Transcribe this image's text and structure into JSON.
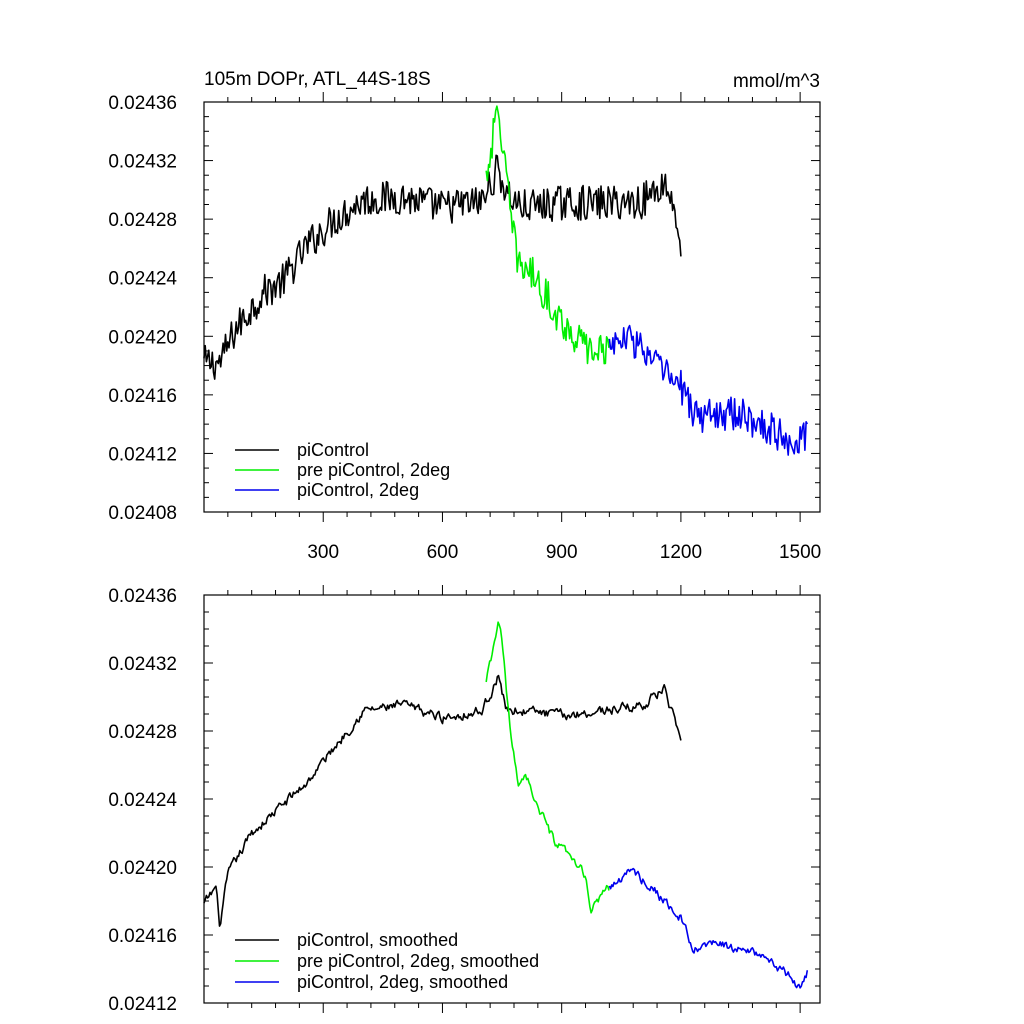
{
  "chart_data": [
    {
      "type": "line",
      "title_left": "105m DOPr, ATL_44S-18S",
      "title_right": "mmol/m^3",
      "xlabel": "",
      "ylabel": "",
      "xlim": [
        0,
        1550
      ],
      "ylim": [
        0.02408,
        0.02436
      ],
      "xticks": [
        300,
        600,
        900,
        1200,
        1500
      ],
      "yticks": [
        0.02408,
        0.02412,
        0.02416,
        0.0242,
        0.02424,
        0.02428,
        0.02432,
        0.02436
      ],
      "ytick_labels": [
        "0.02408",
        "0.02412",
        "0.02416",
        "0.02420",
        "0.02424",
        "0.02428",
        "0.02432",
        "0.02436"
      ],
      "xtick_labels": [
        "300",
        "600",
        "900",
        "1200",
        "1500"
      ],
      "legend_position": "bottom-left",
      "series": [
        {
          "name": "piControl",
          "color": "#000000",
          "noise": 1.2e-05,
          "anchors": [
            [
              0,
              0.024182
            ],
            [
              40,
              0.024182
            ],
            [
              80,
              0.024205
            ],
            [
              150,
              0.02423
            ],
            [
              200,
              0.024238
            ],
            [
              260,
              0.024262
            ],
            [
              320,
              0.024278
            ],
            [
              400,
              0.024293
            ],
            [
              500,
              0.024295
            ],
            [
              600,
              0.024288
            ],
            [
              700,
              0.024292
            ],
            [
              740,
              0.024315
            ],
            [
              760,
              0.024298
            ],
            [
              800,
              0.024288
            ],
            [
              900,
              0.024291
            ],
            [
              1000,
              0.024291
            ],
            [
              1100,
              0.024292
            ],
            [
              1160,
              0.024305
            ],
            [
              1190,
              0.024282
            ],
            [
              1200,
              0.024255
            ]
          ]
        },
        {
          "name": "pre piControl, 2deg",
          "color": "#00ee00",
          "noise": 1.2e-05,
          "anchors": [
            [
              710,
              0.02431
            ],
            [
              730,
              0.02434
            ],
            [
              740,
              0.024355
            ],
            [
              750,
              0.024335
            ],
            [
              770,
              0.024285
            ],
            [
              790,
              0.02425
            ],
            [
              820,
              0.024245
            ],
            [
              860,
              0.024228
            ],
            [
              900,
              0.02421
            ],
            [
              940,
              0.024198
            ],
            [
              980,
              0.024188
            ],
            [
              1020,
              0.024195
            ]
          ]
        },
        {
          "name": "piControl, 2deg",
          "color": "#0000ee",
          "noise": 1.2e-05,
          "anchors": [
            [
              1020,
              0.024195
            ],
            [
              1080,
              0.024198
            ],
            [
              1140,
              0.02418
            ],
            [
              1200,
              0.024165
            ],
            [
              1240,
              0.024145
            ],
            [
              1300,
              0.024148
            ],
            [
              1360,
              0.024145
            ],
            [
              1420,
              0.024138
            ],
            [
              1480,
              0.024128
            ],
            [
              1520,
              0.024132
            ]
          ]
        }
      ]
    },
    {
      "type": "line",
      "title_left": "",
      "title_right": "",
      "xlabel": "",
      "ylabel": "",
      "xlim": [
        0,
        1550
      ],
      "ylim": [
        0.02412,
        0.02436
      ],
      "xticks": [
        300,
        600,
        900,
        1200,
        1500
      ],
      "xtick_labels": [],
      "yticks": [
        0.02412,
        0.02416,
        0.0242,
        0.02424,
        0.02428,
        0.02432,
        0.02436
      ],
      "ytick_labels": [
        "0.02412",
        "0.02416",
        "0.02420",
        "0.02424",
        "0.02428",
        "0.02432",
        "0.02436"
      ],
      "legend_position": "bottom-left",
      "series": [
        {
          "name": "piControl, smoothed",
          "color": "#000000",
          "noise": 6e-06,
          "anchors": [
            [
              0,
              0.024178
            ],
            [
              30,
              0.024188
            ],
            [
              40,
              0.024165
            ],
            [
              60,
              0.024195
            ],
            [
              120,
              0.02422
            ],
            [
              200,
              0.024237
            ],
            [
              260,
              0.02425
            ],
            [
              320,
              0.024268
            ],
            [
              400,
              0.024292
            ],
            [
              500,
              0.024295
            ],
            [
              600,
              0.024288
            ],
            [
              700,
              0.024292
            ],
            [
              740,
              0.024312
            ],
            [
              760,
              0.024293
            ],
            [
              800,
              0.024292
            ],
            [
              900,
              0.024289
            ],
            [
              1000,
              0.024292
            ],
            [
              1100,
              0.024295
            ],
            [
              1160,
              0.024305
            ],
            [
              1190,
              0.02428
            ],
            [
              1200,
              0.02427
            ]
          ]
        },
        {
          "name": "pre piControl, 2deg, smoothed",
          "color": "#00ee00",
          "noise": 6e-06,
          "anchors": [
            [
              710,
              0.024308
            ],
            [
              730,
              0.02433
            ],
            [
              740,
              0.024345
            ],
            [
              750,
              0.024332
            ],
            [
              770,
              0.02428
            ],
            [
              790,
              0.02425
            ],
            [
              810,
              0.024255
            ],
            [
              840,
              0.024235
            ],
            [
              880,
              0.024215
            ],
            [
              920,
              0.024205
            ],
            [
              960,
              0.024195
            ],
            [
              975,
              0.024172
            ],
            [
              1000,
              0.024185
            ],
            [
              1020,
              0.024188
            ]
          ]
        },
        {
          "name": "piControl, 2deg, smoothed",
          "color": "#0000ee",
          "noise": 6e-06,
          "anchors": [
            [
              1020,
              0.024188
            ],
            [
              1080,
              0.024198
            ],
            [
              1140,
              0.024185
            ],
            [
              1200,
              0.02417
            ],
            [
              1230,
              0.02415
            ],
            [
              1280,
              0.024155
            ],
            [
              1340,
              0.024152
            ],
            [
              1400,
              0.024148
            ],
            [
              1460,
              0.024138
            ],
            [
              1500,
              0.024128
            ],
            [
              1520,
              0.02414
            ]
          ]
        }
      ]
    }
  ]
}
